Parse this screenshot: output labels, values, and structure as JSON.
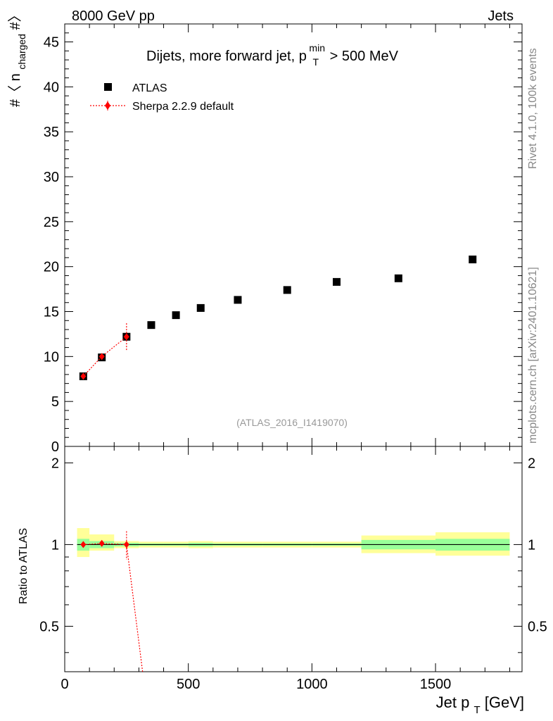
{
  "header": {
    "left": "8000 GeV pp",
    "right": "Jets"
  },
  "side_text": {
    "rivet": "Rivet 4.1.0,  100k events",
    "mcplots": "mcplots.cern.ch [arXiv:2401.10621]"
  },
  "main_title": {
    "prefix": "Dijets, more forward jet, p",
    "sup": "min",
    "sub": "T",
    "suffix": " > 500 MeV"
  },
  "watermark": "(ATLAS_2016_I1419070)",
  "ylabel_main": {
    "pre": "#〈 n",
    "sub": "charged",
    "post": "#〉"
  },
  "ylabel_ratio": "Ratio to ATLAS",
  "xlabel": {
    "pre": "Jet p",
    "sub": "T",
    "post": " [GeV]"
  },
  "legend": [
    {
      "name": "ATLAS",
      "marker": "square",
      "color": "#000000"
    },
    {
      "name": "Sherpa 2.2.9 default",
      "marker": "diamond",
      "color": "#ff0000"
    }
  ],
  "colors": {
    "data": "#000000",
    "mc": "#ff0000",
    "band_inner": "#99ff99",
    "band_outer": "#ffff99"
  },
  "chart_data": [
    {
      "type": "scatter",
      "panel": "main",
      "xlim": [
        0,
        1850
      ],
      "ylim": [
        0,
        47
      ],
      "yticks": [
        0,
        5,
        10,
        15,
        20,
        25,
        30,
        35,
        40,
        45
      ],
      "series": [
        {
          "name": "ATLAS",
          "points": [
            {
              "x": 75,
              "y": 7.8
            },
            {
              "x": 150,
              "y": 9.9
            },
            {
              "x": 250,
              "y": 12.2
            },
            {
              "x": 350,
              "y": 13.5
            },
            {
              "x": 450,
              "y": 14.6
            },
            {
              "x": 550,
              "y": 15.4
            },
            {
              "x": 700,
              "y": 16.3
            },
            {
              "x": 900,
              "y": 17.4
            },
            {
              "x": 1100,
              "y": 18.3
            },
            {
              "x": 1350,
              "y": 18.7
            },
            {
              "x": 1650,
              "y": 20.8
            }
          ]
        },
        {
          "name": "Sherpa 2.2.9 default",
          "points": [
            {
              "x": 75,
              "y": 7.8,
              "err": 0.1
            },
            {
              "x": 150,
              "y": 10.0,
              "err": 0.2
            },
            {
              "x": 250,
              "y": 12.2,
              "err": 1.5
            }
          ]
        }
      ]
    },
    {
      "type": "line",
      "panel": "ratio",
      "xlim": [
        0,
        1850
      ],
      "ylim": [
        0.34,
        2.3
      ],
      "yscale": "log",
      "xticks": [
        0,
        500,
        1000,
        1500
      ],
      "ytick_labels": [
        "0.5",
        "1",
        "2"
      ],
      "bands": [
        {
          "x0": 50,
          "x1": 100,
          "inner": [
            0.95,
            1.05
          ],
          "outer": [
            0.9,
            1.15
          ]
        },
        {
          "x0": 100,
          "x1": 200,
          "inner": [
            0.97,
            1.03
          ],
          "outer": [
            0.95,
            1.09
          ]
        },
        {
          "x0": 200,
          "x1": 300,
          "inner": [
            0.985,
            1.015
          ],
          "outer": [
            0.97,
            1.03
          ]
        },
        {
          "x0": 300,
          "x1": 400,
          "inner": [
            0.99,
            1.01
          ],
          "outer": [
            0.975,
            1.025
          ]
        },
        {
          "x0": 400,
          "x1": 500,
          "inner": [
            0.99,
            1.01
          ],
          "outer": [
            0.975,
            1.025
          ]
        },
        {
          "x0": 500,
          "x1": 600,
          "inner": [
            0.985,
            1.015
          ],
          "outer": [
            0.97,
            1.03
          ]
        },
        {
          "x0": 600,
          "x1": 800,
          "inner": [
            0.99,
            1.01
          ],
          "outer": [
            0.975,
            1.025
          ]
        },
        {
          "x0": 800,
          "x1": 1000,
          "inner": [
            0.99,
            1.01
          ],
          "outer": [
            0.975,
            1.025
          ]
        },
        {
          "x0": 1000,
          "x1": 1200,
          "inner": [
            0.99,
            1.01
          ],
          "outer": [
            0.975,
            1.025
          ]
        },
        {
          "x0": 1200,
          "x1": 1500,
          "inner": [
            0.96,
            1.04
          ],
          "outer": [
            0.93,
            1.08
          ]
        },
        {
          "x0": 1500,
          "x1": 1800,
          "inner": [
            0.95,
            1.05
          ],
          "outer": [
            0.91,
            1.11
          ]
        }
      ],
      "series": [
        {
          "name": "Sherpa 2.2.9 default",
          "points": [
            {
              "x": 75,
              "y": 1.0,
              "err": 0.01
            },
            {
              "x": 150,
              "y": 1.01,
              "err": 0.02
            },
            {
              "x": 250,
              "y": 1.0,
              "err": 0.12
            }
          ]
        }
      ]
    }
  ]
}
